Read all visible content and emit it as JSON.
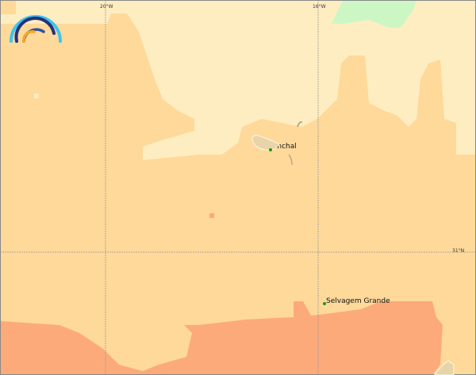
{
  "map": {
    "grid_labels": {
      "lon_left": "20°W",
      "lon_right": "16°W",
      "lat": "31°N"
    },
    "places": [
      {
        "name": "Funchal"
      },
      {
        "name": "Selvagem Grande"
      }
    ],
    "colors": {
      "light": "#feedc0",
      "mid": "#fed99a",
      "high": "#fdaa7b",
      "green": "#ccf7c4",
      "land": "#e8d4a8",
      "marker": "#1a9a1a"
    },
    "logo": "rainbow-arcs-logo"
  }
}
